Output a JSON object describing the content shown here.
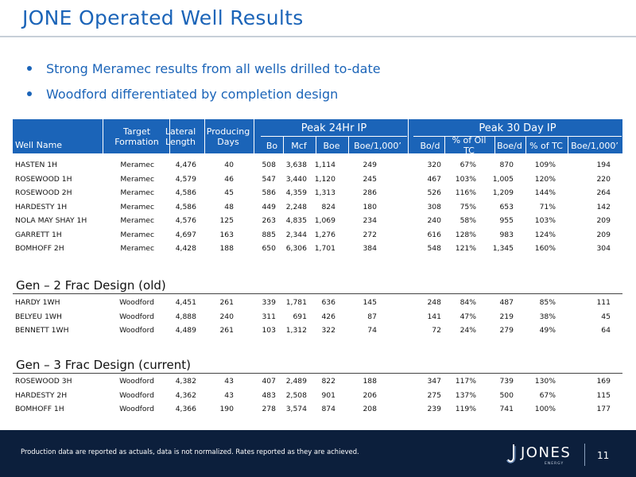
{
  "title": "JONE Operated Well Results",
  "bullets": [
    "Strong Meramec results from all wells drilled to-date",
    "Woodford differentiated by completion design"
  ],
  "header": {
    "well_name": "Well Name",
    "target_formation": "Target Formation",
    "lateral_length": "Lateral Length",
    "producing_days": "Producing Days",
    "peak24": "Peak 24Hr IP",
    "peak30": "Peak 30 Day IP",
    "bo": "Bo",
    "mcf": "Mcf",
    "boe": "Boe",
    "boe1000": "Boe/1,000’",
    "bod": "Bo/d",
    "pct_oil_tc": "% of Oil TC",
    "boed": "Boe/d",
    "pct_tc": "% of TC",
    "boe1000_30": "Boe/1,000’"
  },
  "group1": [
    [
      "HASTEN 1H",
      "Meramec",
      "4,476",
      "40",
      "508",
      "3,638",
      "1,114",
      "249",
      "320",
      "67%",
      "870",
      "109%",
      "194"
    ],
    [
      "ROSEWOOD 1H",
      "Meramec",
      "4,579",
      "46",
      "547",
      "3,440",
      "1,120",
      "245",
      "467",
      "103%",
      "1,005",
      "120%",
      "220"
    ],
    [
      "ROSEWOOD 2H",
      "Meramec",
      "4,586",
      "45",
      "586",
      "4,359",
      "1,313",
      "286",
      "526",
      "116%",
      "1,209",
      "144%",
      "264"
    ],
    [
      "HARDESTY 1H",
      "Meramec",
      "4,586",
      "48",
      "449",
      "2,248",
      "824",
      "180",
      "308",
      "75%",
      "653",
      "71%",
      "142"
    ],
    [
      "NOLA MAY SHAY 1H",
      "Meramec",
      "4,576",
      "125",
      "263",
      "4,835",
      "1,069",
      "234",
      "240",
      "58%",
      "955",
      "103%",
      "209"
    ],
    [
      "GARRETT 1H",
      "Meramec",
      "4,697",
      "163",
      "885",
      "2,344",
      "1,276",
      "272",
      "616",
      "128%",
      "983",
      "124%",
      "209"
    ],
    [
      "BOMHOFF 2H",
      "Meramec",
      "4,428",
      "188",
      "650",
      "6,306",
      "1,701",
      "384",
      "548",
      "121%",
      "1,345",
      "160%",
      "304"
    ]
  ],
  "section2_title": "Gen – 2 Frac Design (old)",
  "group2": [
    [
      "HARDY 1WH",
      "Woodford",
      "4,451",
      "261",
      "339",
      "1,781",
      "636",
      "145",
      "248",
      "84%",
      "487",
      "85%",
      "111"
    ],
    [
      "BELYEU 1WH",
      "Woodford",
      "4,888",
      "240",
      "311",
      "691",
      "426",
      "87",
      "141",
      "47%",
      "219",
      "38%",
      "45"
    ],
    [
      "BENNETT 1WH",
      "Woodford",
      "4,489",
      "261",
      "103",
      "1,312",
      "322",
      "74",
      "72",
      "24%",
      "279",
      "49%",
      "64"
    ]
  ],
  "section3_title": "Gen – 3 Frac Design (current)",
  "group3": [
    [
      "ROSEWOOD 3H",
      "Woodford",
      "4,382",
      "43",
      "407",
      "2,489",
      "822",
      "188",
      "347",
      "117%",
      "739",
      "130%",
      "169"
    ],
    [
      "HARDESTY 2H",
      "Woodford",
      "4,362",
      "43",
      "483",
      "2,508",
      "901",
      "206",
      "275",
      "137%",
      "500",
      "67%",
      "115"
    ],
    [
      "BOMHOFF 1H",
      "Woodford",
      "4,366",
      "190",
      "278",
      "3,574",
      "874",
      "208",
      "239",
      "119%",
      "741",
      "100%",
      "177"
    ]
  ],
  "footnote": "Production data are reported as actuals, data is not normalized. Rates reported as they are achieved.",
  "logo_text": "JONES",
  "logo_sub": "ENERGY",
  "page_number": "11"
}
